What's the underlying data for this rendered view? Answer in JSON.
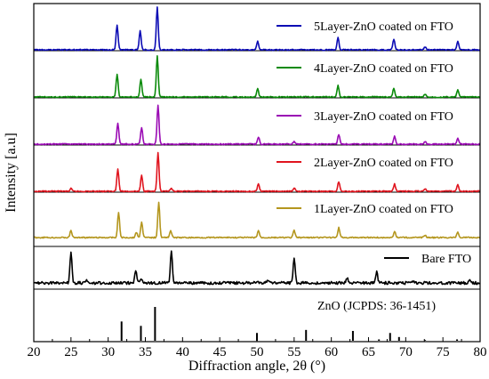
{
  "chart_data": {
    "type": "line",
    "xlabel": "Diffraction angle, 2θ (°)",
    "ylabel": "Intensity [a.u]",
    "xlim": [
      20,
      80
    ],
    "x_ticks": [
      20,
      25,
      30,
      35,
      40,
      45,
      50,
      55,
      60,
      65,
      70,
      75,
      80
    ],
    "y_tick_labels": "none",
    "grid": false,
    "legend_placement": "each panel, top-right",
    "series": [
      {
        "name": "5Layer-ZnO coated on FTO",
        "color": "#0b0bb4",
        "peaks": [
          {
            "x": 31.2,
            "y": 28
          },
          {
            "x": 34.3,
            "y": 22
          },
          {
            "x": 36.6,
            "y": 48
          },
          {
            "x": 50.1,
            "y": 10
          },
          {
            "x": 60.9,
            "y": 14
          },
          {
            "x": 68.4,
            "y": 12
          },
          {
            "x": 72.6,
            "y": 3
          },
          {
            "x": 77.0,
            "y": 9
          }
        ]
      },
      {
        "name": "4Layer-ZnO coated on FTO",
        "color": "#0a8a0a",
        "peaks": [
          {
            "x": 31.2,
            "y": 26
          },
          {
            "x": 34.4,
            "y": 20
          },
          {
            "x": 36.6,
            "y": 46
          },
          {
            "x": 50.1,
            "y": 9
          },
          {
            "x": 60.9,
            "y": 13
          },
          {
            "x": 68.4,
            "y": 10
          },
          {
            "x": 72.6,
            "y": 3
          },
          {
            "x": 77.0,
            "y": 8
          }
        ]
      },
      {
        "name": "3Layer-ZnO coated on FTO",
        "color": "#9a0ab4",
        "peaks": [
          {
            "x": 31.3,
            "y": 24
          },
          {
            "x": 34.5,
            "y": 19
          },
          {
            "x": 36.7,
            "y": 44
          },
          {
            "x": 50.2,
            "y": 8
          },
          {
            "x": 55.0,
            "y": 3
          },
          {
            "x": 61.0,
            "y": 11
          },
          {
            "x": 68.5,
            "y": 9
          },
          {
            "x": 72.6,
            "y": 3
          },
          {
            "x": 77.0,
            "y": 7
          }
        ]
      },
      {
        "name": "2Layer-ZnO coated on FTO",
        "color": "#e0141e",
        "peaks": [
          {
            "x": 25.0,
            "y": 3
          },
          {
            "x": 31.3,
            "y": 25
          },
          {
            "x": 34.5,
            "y": 18
          },
          {
            "x": 36.7,
            "y": 43
          },
          {
            "x": 38.5,
            "y": 3
          },
          {
            "x": 50.2,
            "y": 8
          },
          {
            "x": 55.0,
            "y": 4
          },
          {
            "x": 61.0,
            "y": 11
          },
          {
            "x": 68.5,
            "y": 8
          },
          {
            "x": 72.6,
            "y": 3
          },
          {
            "x": 77.0,
            "y": 7
          }
        ]
      },
      {
        "name": "1Layer-ZnO coated on FTO",
        "color": "#b4961e",
        "peaks": [
          {
            "x": 25.0,
            "y": 8
          },
          {
            "x": 31.4,
            "y": 28
          },
          {
            "x": 33.8,
            "y": 6
          },
          {
            "x": 34.5,
            "y": 18
          },
          {
            "x": 36.8,
            "y": 40
          },
          {
            "x": 38.4,
            "y": 8
          },
          {
            "x": 50.2,
            "y": 8
          },
          {
            "x": 55.0,
            "y": 8
          },
          {
            "x": 61.0,
            "y": 11
          },
          {
            "x": 68.5,
            "y": 7
          },
          {
            "x": 72.6,
            "y": 3
          },
          {
            "x": 77.0,
            "y": 6
          }
        ]
      },
      {
        "name": "Bare FTO",
        "color": "#000000",
        "peaks": [
          {
            "x": 25.0,
            "y": 36
          },
          {
            "x": 27.0,
            "y": 3
          },
          {
            "x": 33.7,
            "y": 14
          },
          {
            "x": 34.4,
            "y": 5
          },
          {
            "x": 38.5,
            "y": 36
          },
          {
            "x": 51.5,
            "y": 3
          },
          {
            "x": 55.0,
            "y": 28
          },
          {
            "x": 62.1,
            "y": 6
          },
          {
            "x": 66.1,
            "y": 13
          },
          {
            "x": 71.0,
            "y": 2
          },
          {
            "x": 78.6,
            "y": 3
          }
        ]
      },
      {
        "name": "ZnO (JCPDS: 36-1451)",
        "type": "stick",
        "color": "#000000",
        "sticks": [
          {
            "x": 31.8,
            "y": 57
          },
          {
            "x": 34.4,
            "y": 44
          },
          {
            "x": 36.3,
            "y": 100
          },
          {
            "x": 47.5,
            "y": 0
          },
          {
            "x": 50.0,
            "y": 23
          },
          {
            "x": 56.6,
            "y": 32
          },
          {
            "x": 62.9,
            "y": 29
          },
          {
            "x": 66.4,
            "y": 4
          },
          {
            "x": 67.9,
            "y": 23
          },
          {
            "x": 69.1,
            "y": 11
          },
          {
            "x": 72.6,
            "y": 2
          },
          {
            "x": 76.9,
            "y": 4
          }
        ]
      }
    ]
  }
}
